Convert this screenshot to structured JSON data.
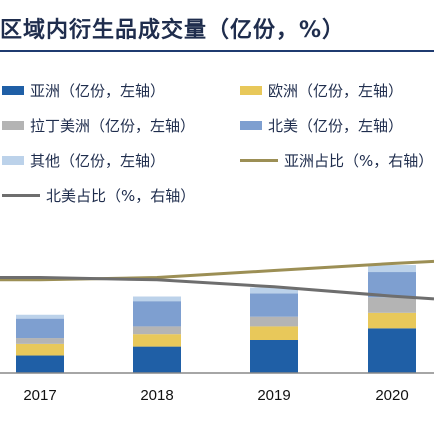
{
  "chart_data": {
    "type": "bar",
    "title": "区域内衍生品成交量（亿份，%）",
    "categories": [
      "2017",
      "2018",
      "2019",
      "2020"
    ],
    "series": [
      {
        "name": "亚洲（亿份，左轴）",
        "kind": "bar",
        "color": "#1f5fa6",
        "values": [
          4.5,
          6.8,
          8.5,
          11.5
        ]
      },
      {
        "name": "欧洲（亿份，左轴）",
        "kind": "bar",
        "color": "#e8c85a",
        "values": [
          3.0,
          3.2,
          3.5,
          4.0
        ]
      },
      {
        "name": "拉丁美洲（亿份，左轴）",
        "kind": "bar",
        "color": "#b4b4b4",
        "values": [
          1.5,
          2.0,
          2.5,
          4.0
        ]
      },
      {
        "name": "北美（亿份，左轴）",
        "kind": "bar",
        "color": "#7e9fd0",
        "values": [
          5.0,
          6.5,
          6.0,
          6.5
        ]
      },
      {
        "name": "其他（亿份，左轴）",
        "kind": "bar",
        "color": "#bcd2ea",
        "values": [
          1.0,
          1.2,
          1.5,
          1.8
        ]
      },
      {
        "name": "亚洲占比（%，右轴）",
        "kind": "line",
        "color": "#9c8f55",
        "values": [
          40,
          41,
          44,
          47
        ]
      },
      {
        "name": "北美占比（%，右轴）",
        "kind": "line",
        "color": "#6e6e6e",
        "values": [
          41,
          40,
          37,
          33
        ]
      }
    ],
    "ylim_left": [
      0,
      60
    ],
    "ylim_right": [
      0,
      100
    ],
    "grid": false,
    "legend_position": "top"
  }
}
